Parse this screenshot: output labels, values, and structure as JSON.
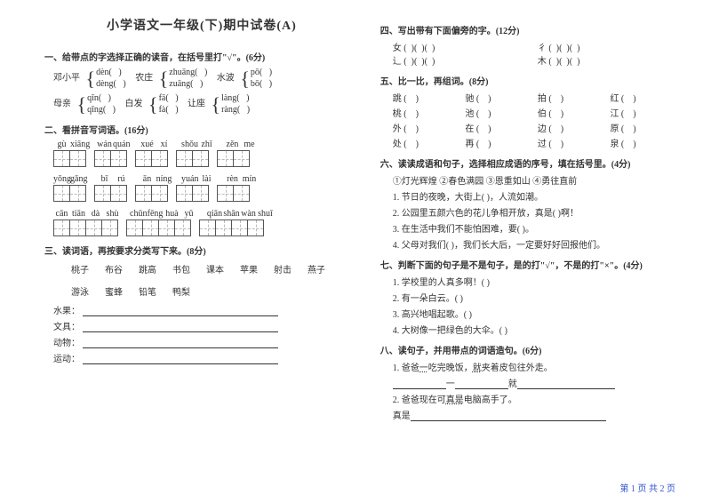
{
  "title": "小学语文一年级(下)期中试卷(A)",
  "left": {
    "q1": {
      "heading": "一、给带点的字选择正确的读音，在括号里打\"√\"。(6分)",
      "items": [
        {
          "word": "邓小平",
          "a": "dèn(",
          "b": "dèng("
        },
        {
          "word": "农庄",
          "a": "zhuāng(",
          "b": "zuāng("
        },
        {
          "word": "水波",
          "a": "pō(",
          "b": "bō("
        },
        {
          "word": "母亲",
          "a": "qīn(",
          "b": "qīng("
        },
        {
          "word": "白发",
          "a": "fā(",
          "b": "fà("
        },
        {
          "word": "让座",
          "a": "làng(",
          "b": "ràng("
        }
      ]
    },
    "q2": {
      "heading": "二、看拼音写词语。(16分)",
      "rows": [
        [
          "gù",
          "xiāng",
          "",
          "wán",
          "quán",
          "",
          "xué",
          "xí",
          "",
          "shǒu",
          "zhǐ",
          "",
          "zěn",
          "me"
        ],
        [
          "yǒng",
          "gǎng",
          "",
          "bī",
          "rú",
          "",
          "ān",
          "níng",
          "",
          "yuán",
          "lài",
          "",
          "rèn",
          "mín"
        ],
        [
          "cān",
          "tiān",
          "dà",
          "shù",
          "",
          "chūn",
          "fēng",
          "huà",
          "yǔ",
          "",
          "qiān",
          "shān",
          "wàn",
          "shuǐ"
        ]
      ]
    },
    "q3": {
      "heading": "三、读词语，再按要求分类写下来。(8分)",
      "words": [
        "桃子",
        "布谷",
        "跳高",
        "书包",
        "课本",
        "苹果",
        "射击",
        "燕子",
        "游泳",
        "蜜蜂",
        "铅笔",
        "鸭梨"
      ],
      "cats": [
        "水果：",
        "文具：",
        "动物：",
        "运动："
      ]
    }
  },
  "right": {
    "q4": {
      "heading": "四、写出带有下面偏旁的字。(12分)",
      "rows": [
        [
          "女 (",
          "彳 ("
        ],
        [
          "辶 (",
          "木 ("
        ]
      ]
    },
    "q5": {
      "heading": "五、比一比，再组词。(8分)",
      "rows": [
        [
          "跳 (",
          "驰 (",
          "拍 (",
          "红 ("
        ],
        [
          "桃 (",
          "池 (",
          "伯 (",
          "江 ("
        ],
        [
          "外 (",
          "在 (",
          "边 (",
          "原 ("
        ],
        [
          "处 (",
          "再 (",
          "过 (",
          "泉 ("
        ]
      ]
    },
    "q6": {
      "heading": "六、读读成语和句子，选择相应成语的序号，填在括号里。(4分)",
      "ops": "①灯光辉煌   ②春色满园   ③恩重如山   ④勇往直前",
      "lines": [
        "1. 节日的夜晚，大街上(    )，人流如潮。",
        "2. 公园里五颜六色的花儿争相开放，真是(    )啊！",
        "3. 在生活中我们不能怕困难，要(    )。",
        "4. 父母对我们(    )，我们长大后，一定要好好回报他们。"
      ]
    },
    "q7": {
      "heading": "七、判断下面的句子是不是句子，是的打\"√\"，不是的打\"×\"。(4分)",
      "lines": [
        "1. 学校里的人真多啊！(    )",
        "2. 有一朵白云。(    )",
        "3. 高兴地唱起歌。(    )",
        "4. 大树像一把绿色的大伞。(    )"
      ]
    },
    "q8": {
      "heading": "八、读句子，并用带点的词语造句。(6分)",
      "l1p": "1. 爸爸",
      "l1a": "一",
      "l1m": "吃完晚饭，",
      "l1b": "就",
      "l1s": "夹着皮包往外走。",
      "fill1a": "一",
      "fill1b": "就",
      "l2p": "2. 爸爸现在可",
      "l2a": "真是",
      "l2s": "电脑高手了。",
      "fill2": "真是"
    }
  },
  "footer": "第 1 页 共 2 页"
}
